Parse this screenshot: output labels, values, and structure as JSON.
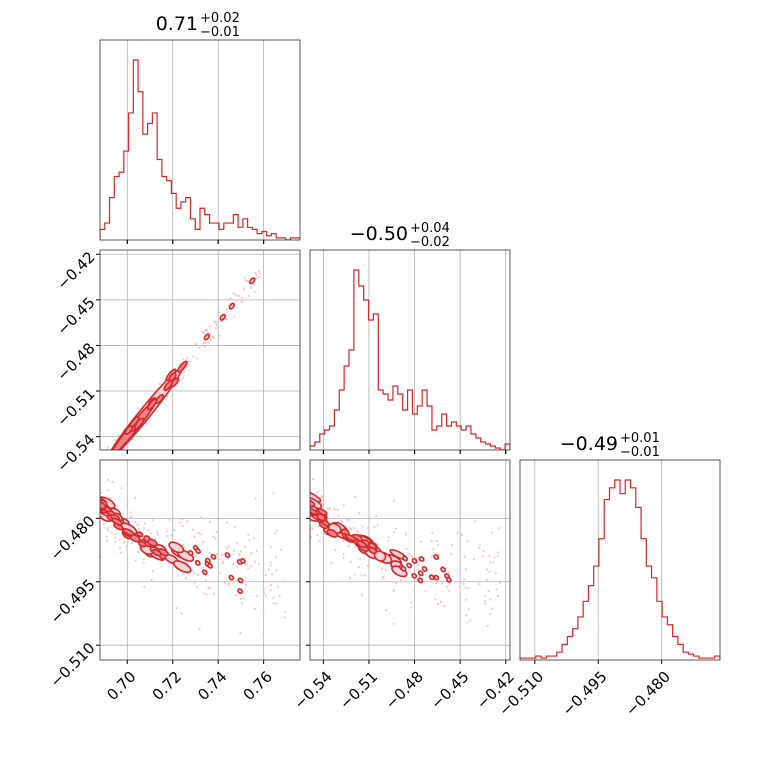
{
  "colors": {
    "primary": "#d62728",
    "fill_dark": "#e8838c",
    "fill_light": "#f7d4d8",
    "grid": "#b0b0b0",
    "scatter": "#f4c6cb"
  },
  "chart_data": {
    "type": "corner",
    "titles": [
      {
        "main": "0.71",
        "plus": "+0.02",
        "minus": "−0.01"
      },
      {
        "main": "−0.50",
        "plus": "+0.04",
        "minus": "−0.02"
      },
      {
        "main": "−0.49",
        "plus": "+0.01",
        "minus": "−0.01"
      }
    ],
    "ranges": [
      [
        0.688,
        0.776
      ],
      [
        -0.5488,
        -0.4172
      ],
      [
        -0.5135,
        -0.4662
      ]
    ],
    "ticks": [
      {
        "values": [
          0.7,
          0.72,
          0.74,
          0.76
        ],
        "labels": [
          "0.70",
          "0.72",
          "0.74",
          "0.76"
        ]
      },
      {
        "values": [
          -0.54,
          -0.51,
          -0.48,
          -0.45,
          -0.42
        ],
        "labels": [
          "−0.54",
          "−0.51",
          "−0.48",
          "−0.45",
          "−0.42"
        ]
      },
      {
        "values": [
          -0.51,
          -0.495,
          -0.48
        ],
        "labels": [
          "−0.510",
          "−0.495",
          "−0.480"
        ]
      }
    ],
    "histograms": [
      {
        "param": 0,
        "counts": [
          5,
          8,
          20,
          30,
          32,
          42,
          60,
          85,
          70,
          50,
          55,
          60,
          38,
          30,
          28,
          22,
          15,
          18,
          20,
          10,
          5,
          15,
          12,
          8,
          8,
          5,
          8,
          8,
          12,
          6,
          10,
          6,
          5,
          3,
          4,
          2,
          3,
          1,
          1,
          0,
          1,
          1
        ]
      },
      {
        "param": 1,
        "counts": [
          2,
          4,
          8,
          10,
          12,
          20,
          30,
          42,
          50,
          90,
          82,
          75,
          65,
          68,
          30,
          28,
          25,
          32,
          28,
          20,
          30,
          18,
          22,
          30,
          22,
          10,
          12,
          18,
          12,
          14,
          12,
          10,
          12,
          8,
          6,
          4,
          3,
          2,
          1,
          0,
          3
        ]
      },
      {
        "param": 2,
        "counts": [
          1,
          1,
          1,
          2,
          1,
          2,
          2,
          4,
          8,
          12,
          16,
          22,
          30,
          38,
          48,
          62,
          82,
          88,
          92,
          85,
          92,
          88,
          78,
          62,
          48,
          42,
          30,
          22,
          18,
          12,
          8,
          4,
          3,
          2,
          1,
          1,
          1,
          2
        ]
      }
    ],
    "scatter_pairs": [
      {
        "x_param": 0,
        "y_param": 1,
        "relation": "linear",
        "slope": 1.85,
        "intercept": -1.8342,
        "spread": 0.004
      },
      {
        "x_param": 0,
        "y_param": 2,
        "relation": "decay"
      },
      {
        "x_param": 1,
        "y_param": 2,
        "relation": "decay"
      }
    ]
  }
}
